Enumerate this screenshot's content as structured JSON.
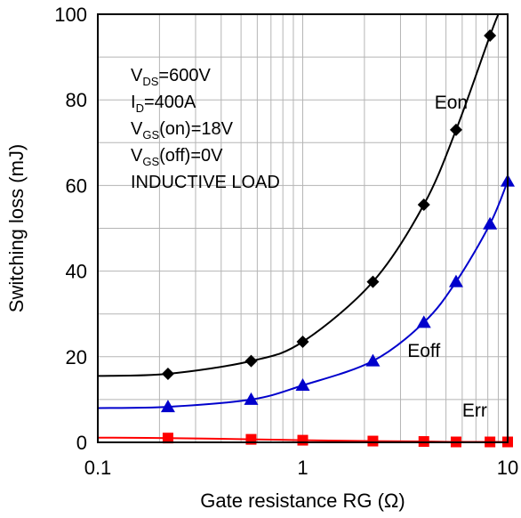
{
  "chart_data": {
    "type": "line",
    "title": "",
    "xlabel": "Gate resistance RG (Ω)",
    "ylabel": "Switching loss (mJ)",
    "xscale": "log",
    "xlim": [
      0.1,
      10
    ],
    "ylim": [
      0,
      100
    ],
    "grid": true,
    "x_ticks": [
      "0.1",
      "1",
      "10"
    ],
    "y_ticks": [
      "0",
      "20",
      "40",
      "60",
      "80",
      "100"
    ],
    "conditions": [
      {
        "main": "V",
        "sub": "DS",
        "rest": "=600V"
      },
      {
        "main": "I",
        "sub": "D",
        "rest": "=400A"
      },
      {
        "main": "V",
        "sub": "GS",
        "rest": "(on)=18V"
      },
      {
        "main": "V",
        "sub": "GS",
        "rest": "(off)=0V"
      },
      {
        "main": "INDUCTIVE LOAD",
        "sub": "",
        "rest": ""
      }
    ],
    "series": [
      {
        "name": "Eon",
        "color": "#000000",
        "marker": "diamond",
        "x": [
          0.22,
          0.56,
          1.0,
          2.2,
          3.9,
          5.6,
          8.2
        ],
        "values": [
          16,
          19,
          23.5,
          37.5,
          55.5,
          73,
          95
        ],
        "curve": {
          "x": [
            0.1,
            0.22,
            0.56,
            1.0,
            2.2,
            3.9,
            5.6,
            8.2,
            9.0
          ],
          "y": [
            15.5,
            16,
            19,
            23.5,
            37.5,
            55.5,
            73,
            95,
            100
          ]
        }
      },
      {
        "name": "Eoff",
        "color": "#0000cc",
        "marker": "triangle",
        "x": [
          0.22,
          0.56,
          1.0,
          2.2,
          3.9,
          5.6,
          8.2,
          10
        ],
        "values": [
          8.3,
          10,
          13.3,
          19,
          28,
          37.5,
          51,
          61
        ],
        "curve": {
          "x": [
            0.1,
            0.22,
            0.56,
            1.0,
            2.2,
            3.9,
            5.6,
            8.2,
            10
          ],
          "y": [
            8,
            8.3,
            10,
            13.3,
            19,
            28,
            37.5,
            51,
            61
          ]
        }
      },
      {
        "name": "Err",
        "color": "#ff0000",
        "marker": "square",
        "x": [
          0.22,
          0.56,
          1.0,
          2.2,
          3.9,
          5.6,
          8.2,
          10
        ],
        "values": [
          1.0,
          0.7,
          0.5,
          0.3,
          0.2,
          0.1,
          0.1,
          0.1
        ],
        "curve": {
          "x": [
            0.1,
            0.22,
            0.56,
            1.0,
            2.2,
            3.9,
            5.6,
            8.2,
            10
          ],
          "y": [
            1.1,
            1.0,
            0.7,
            0.5,
            0.3,
            0.2,
            0.1,
            0.1,
            0.1
          ]
        }
      }
    ]
  }
}
